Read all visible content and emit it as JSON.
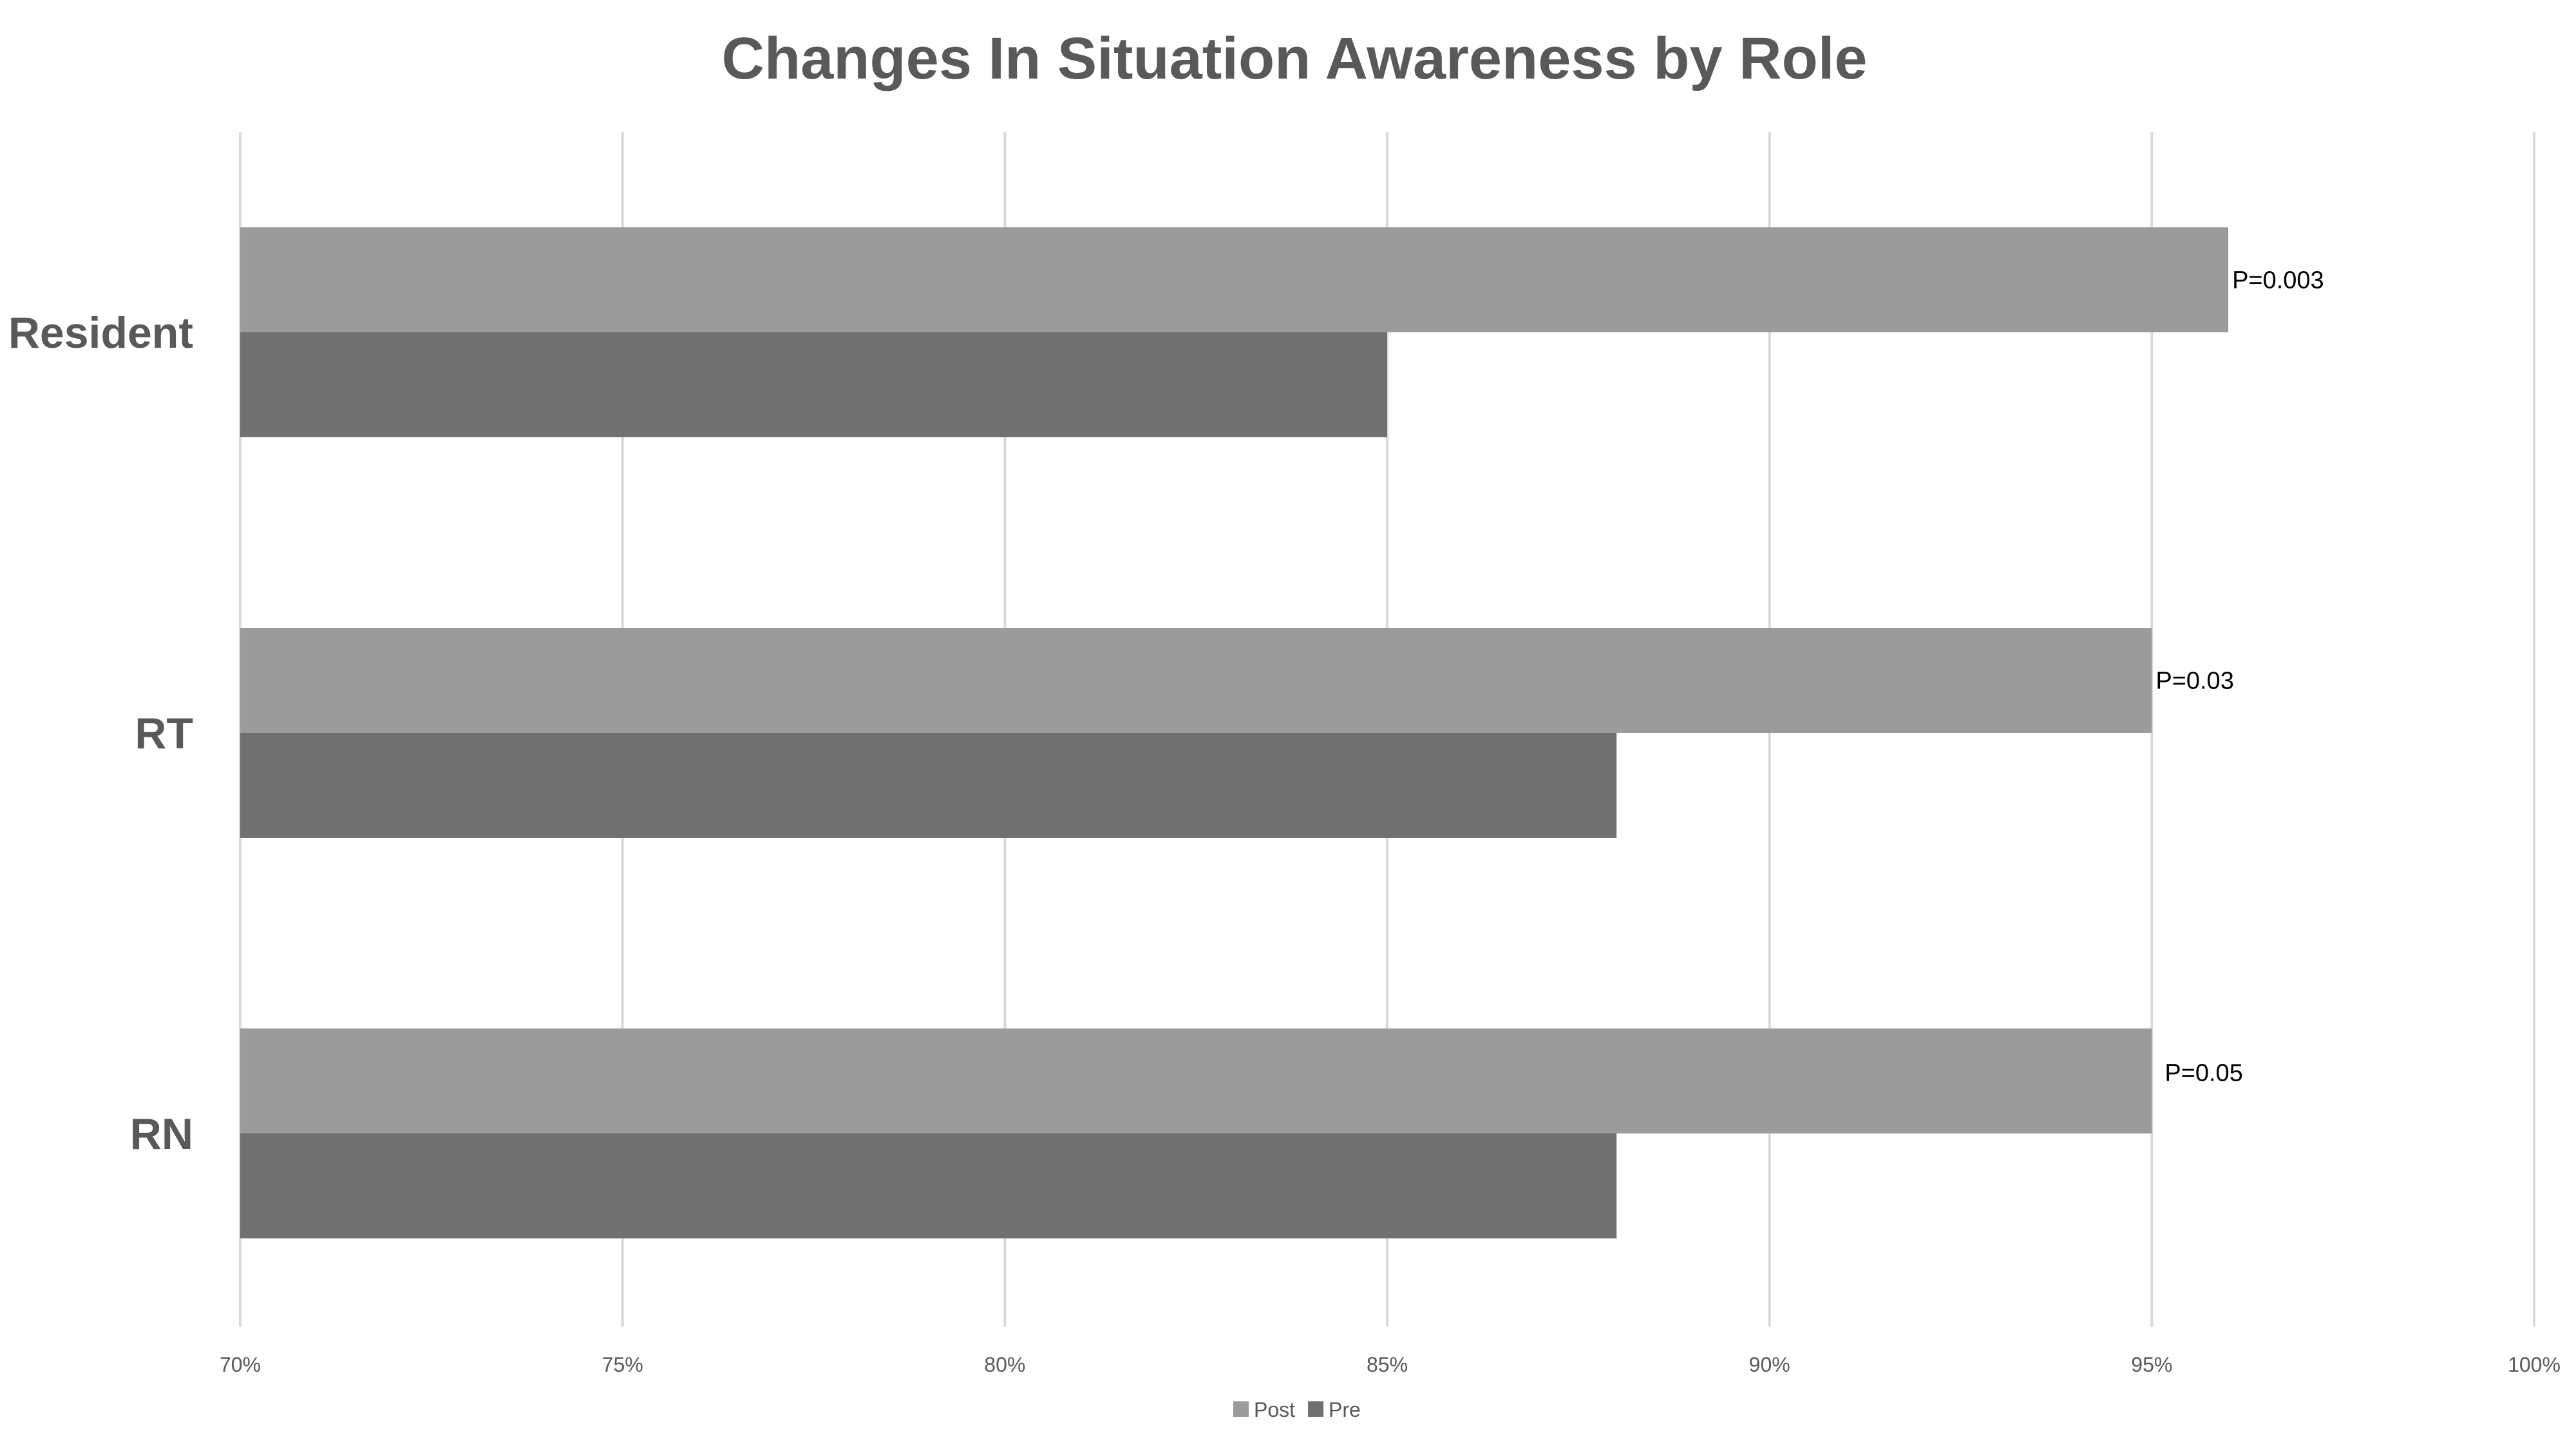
{
  "chart_data": {
    "type": "bar",
    "orientation": "horizontal",
    "title": "Changes In Situation Awareness by Role",
    "xlabel": "",
    "ylabel": "",
    "categories": [
      "Resident",
      "RT",
      "RN"
    ],
    "series": [
      {
        "name": "Post",
        "values": [
          0.96,
          0.95,
          0.95
        ],
        "color": "#9b9b9b"
      },
      {
        "name": "Pre",
        "values": [
          0.85,
          0.88,
          0.88
        ],
        "color": "#707070"
      }
    ],
    "annotations": [
      "P=0.003",
      "P=0.03",
      "P=0.05"
    ],
    "xlim": [
      0.7,
      1.0
    ],
    "xticks": [
      0.7,
      0.75,
      0.8,
      0.85,
      0.9,
      0.95,
      1.0
    ],
    "xtick_labels": [
      "70%",
      "75%",
      "80%",
      "85%",
      "90%",
      "95%",
      "100%"
    ],
    "grid": true,
    "legend_position": "bottom"
  }
}
